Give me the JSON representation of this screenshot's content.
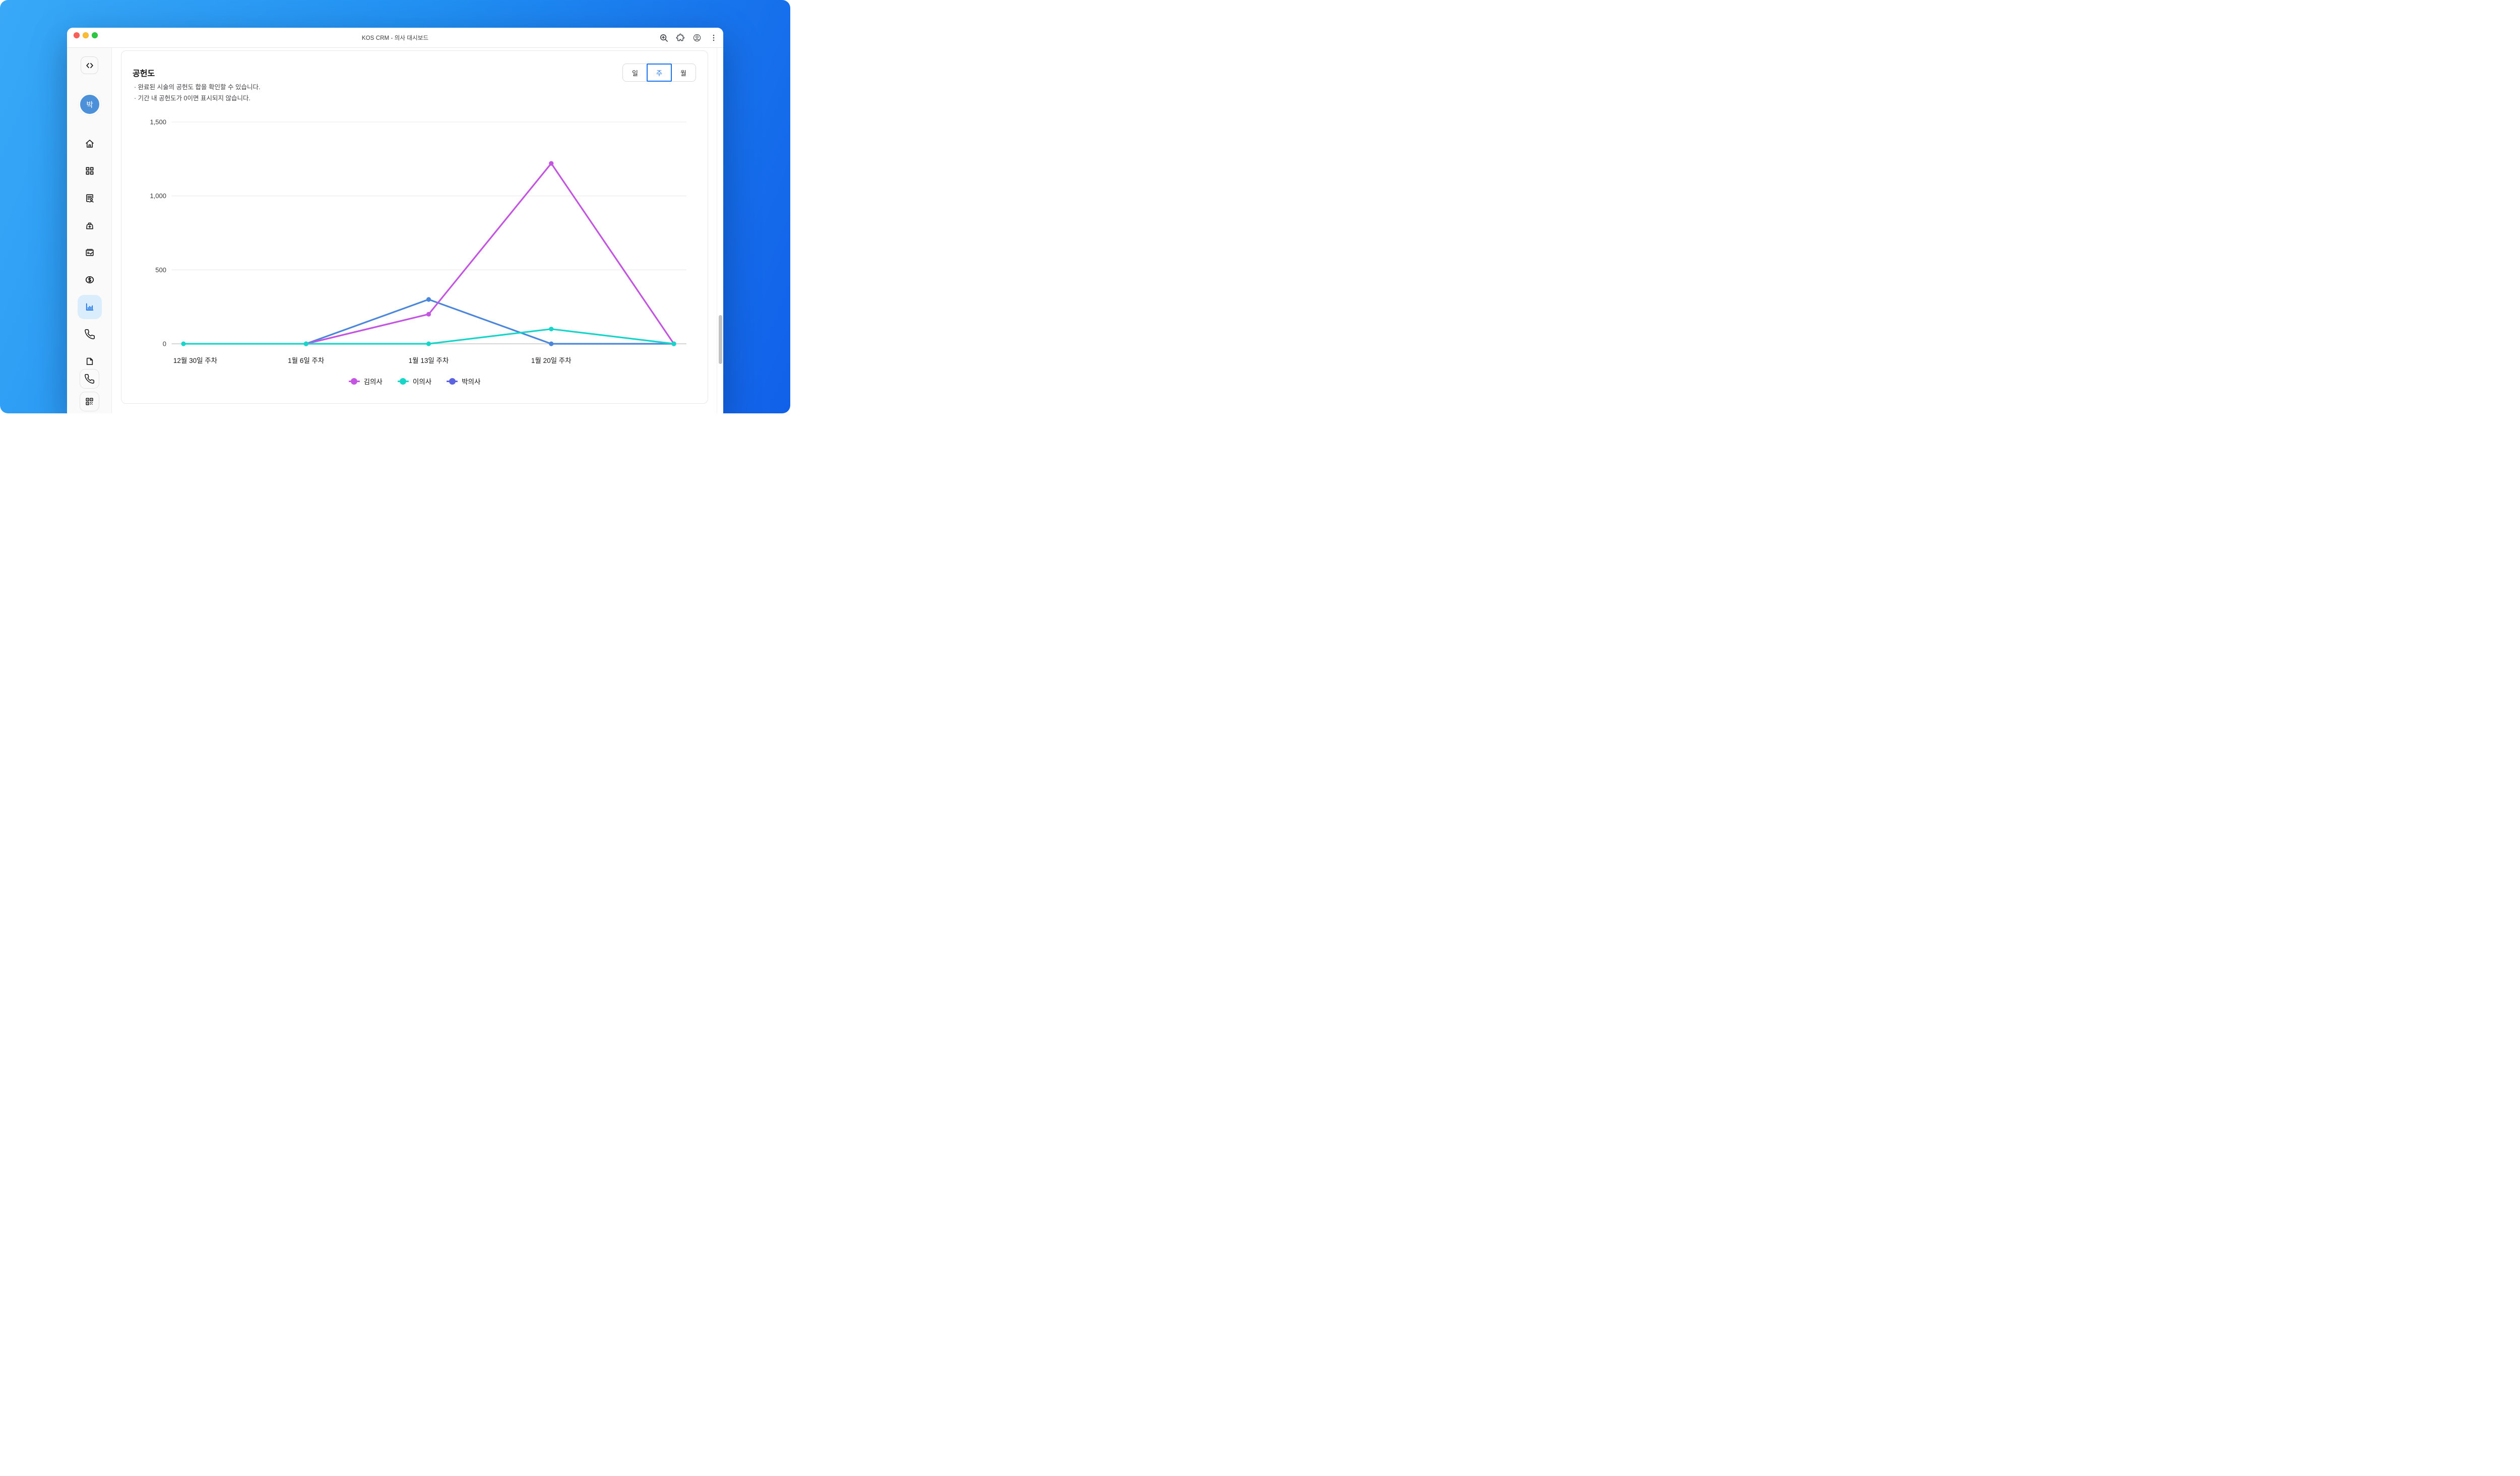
{
  "titlebar": {
    "title": "KOS CRM - 의사 대시보드",
    "traffic_lights": [
      "#ff5f57",
      "#febc2e",
      "#28c840"
    ],
    "right_icons": [
      "zoom-in-icon",
      "extensions-icon",
      "profile-icon",
      "kebab-menu-icon"
    ]
  },
  "sidebar": {
    "collapse_icon": "code-icon",
    "avatar_label": "박",
    "avatar_color": "#4b90d8",
    "active_color": "#1a73e8",
    "active_bg": "#d9edfc",
    "items": [
      {
        "icon": "home-icon",
        "active": false
      },
      {
        "icon": "grid-icon",
        "active": false
      },
      {
        "icon": "patient-record-icon",
        "active": false
      },
      {
        "icon": "medical-bag-icon",
        "active": false
      },
      {
        "icon": "calendar-check-icon",
        "active": false
      },
      {
        "icon": "dollar-icon",
        "active": false
      },
      {
        "icon": "bar-chart-icon",
        "active": true
      },
      {
        "icon": "phone-icon",
        "active": false
      },
      {
        "icon": "page-icon",
        "active": false
      }
    ],
    "footer_buttons": [
      {
        "icon": "phone-icon"
      },
      {
        "icon": "qr-icon"
      }
    ]
  },
  "panel": {
    "title": "공헌도",
    "notes": [
      "· 완료된 시술의 공헌도 합을 확인할 수 있습니다.",
      "· 기간 내 공헌도가 0이면 표시되지 않습니다."
    ],
    "period_buttons": [
      {
        "label": "일",
        "active": false
      },
      {
        "label": "주",
        "active": true
      },
      {
        "label": "월",
        "active": false
      }
    ],
    "accent_color": "#1a73e8"
  },
  "chart_data": {
    "type": "line",
    "categories": [
      "12월 30일 주차",
      "1월 6일 주차",
      "1월 13일 주차",
      "1월 20일 주차",
      ""
    ],
    "series": [
      {
        "name": "김의사",
        "color": "#c455e2",
        "values": [
          null,
          0,
          200,
          1220,
          0
        ]
      },
      {
        "name": "이의사",
        "color": "#17d5c8",
        "values": [
          0,
          0,
          0,
          100,
          0
        ]
      },
      {
        "name": "박의사",
        "color": "#4a86dc",
        "legend_color": "#5b63e0",
        "values": [
          null,
          0,
          300,
          0,
          0
        ]
      }
    ],
    "ylim": [
      0,
      1500
    ],
    "yticks": [
      {
        "value": 0,
        "label": "0"
      },
      {
        "value": 500,
        "label": "500"
      },
      {
        "value": 1000,
        "label": "1,000"
      },
      {
        "value": 1500,
        "label": "1,500"
      }
    ],
    "grid": true,
    "legend_position": "bottom",
    "gridline_color": "#e9e9e9",
    "baseline_color": "#c9c9c9"
  }
}
